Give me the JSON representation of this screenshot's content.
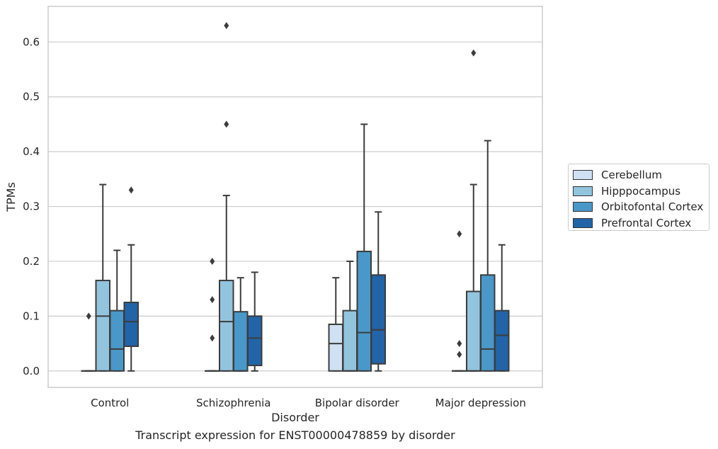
{
  "chart_data": {
    "type": "box",
    "xlabel": "Disorder",
    "ylabel": "TPMs",
    "ylim": [
      -0.03,
      0.665
    ],
    "yticks": [
      0.0,
      0.1,
      0.2,
      0.3,
      0.4,
      0.5,
      0.6
    ],
    "ytick_labels": [
      "0.0",
      "0.1",
      "0.2",
      "0.3",
      "0.4",
      "0.5",
      "0.6"
    ],
    "grid": "horizontal",
    "legend_position": "right",
    "categories": [
      "Control",
      "Schizophrenia",
      "Bipolar disorder",
      "Major depression"
    ],
    "series": [
      {
        "name": "Cerebellum",
        "color": "#cfe1f2",
        "boxes": [
          {
            "whislo": 0.0,
            "q1": 0.0,
            "med": 0.0,
            "q3": 0.0,
            "whishi": 0.0,
            "fliers": [
              0.1
            ]
          },
          {
            "whislo": 0.0,
            "q1": 0.0,
            "med": 0.0,
            "q3": 0.0,
            "whishi": 0.0,
            "fliers": [
              0.2,
              0.13,
              0.06
            ]
          },
          {
            "whislo": 0.0,
            "q1": 0.0,
            "med": 0.05,
            "q3": 0.085,
            "whishi": 0.17,
            "fliers": []
          },
          {
            "whislo": 0.0,
            "q1": 0.0,
            "med": 0.0,
            "q3": 0.0,
            "whishi": 0.0,
            "fliers": [
              0.25,
              0.05,
              0.03
            ]
          }
        ]
      },
      {
        "name": "Hipppocampus",
        "color": "#93c4de",
        "boxes": [
          {
            "whislo": 0.0,
            "q1": 0.0,
            "med": 0.1,
            "q3": 0.165,
            "whishi": 0.34,
            "fliers": []
          },
          {
            "whislo": 0.0,
            "q1": 0.0,
            "med": 0.09,
            "q3": 0.165,
            "whishi": 0.32,
            "fliers": [
              0.45,
              0.63
            ]
          },
          {
            "whislo": 0.0,
            "q1": 0.0,
            "med": 0.0,
            "q3": 0.11,
            "whishi": 0.2,
            "fliers": []
          },
          {
            "whislo": 0.0,
            "q1": 0.0,
            "med": 0.0,
            "q3": 0.145,
            "whishi": 0.34,
            "fliers": [
              0.58
            ]
          }
        ]
      },
      {
        "name": "Orbitofontal Cortex",
        "color": "#4a98c9",
        "boxes": [
          {
            "whislo": 0.0,
            "q1": 0.0,
            "med": 0.04,
            "q3": 0.11,
            "whishi": 0.22,
            "fliers": []
          },
          {
            "whislo": 0.0,
            "q1": 0.0,
            "med": 0.0,
            "q3": 0.108,
            "whishi": 0.17,
            "fliers": []
          },
          {
            "whislo": 0.0,
            "q1": 0.0,
            "med": 0.07,
            "q3": 0.218,
            "whishi": 0.45,
            "fliers": []
          },
          {
            "whislo": 0.0,
            "q1": 0.0,
            "med": 0.04,
            "q3": 0.175,
            "whishi": 0.42,
            "fliers": []
          }
        ]
      },
      {
        "name": "Prefrontal Cortex",
        "color": "#2264a8",
        "boxes": [
          {
            "whislo": 0.0,
            "q1": 0.045,
            "med": 0.09,
            "q3": 0.125,
            "whishi": 0.23,
            "fliers": [
              0.33
            ]
          },
          {
            "whislo": 0.0,
            "q1": 0.01,
            "med": 0.06,
            "q3": 0.1,
            "whishi": 0.18,
            "fliers": []
          },
          {
            "whislo": 0.0,
            "q1": 0.013,
            "med": 0.075,
            "q3": 0.175,
            "whishi": 0.29,
            "fliers": []
          },
          {
            "whislo": 0.0,
            "q1": 0.0,
            "med": 0.065,
            "q3": 0.11,
            "whishi": 0.23,
            "fliers": []
          }
        ]
      }
    ]
  },
  "caption": "Transcript expression for ENST00000478859 by disorder"
}
